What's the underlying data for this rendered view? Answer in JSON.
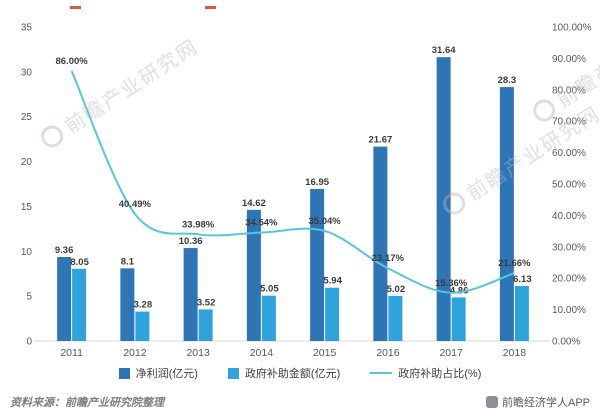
{
  "chart_data": {
    "type": "bar",
    "categories": [
      "2011",
      "2012",
      "2013",
      "2014",
      "2015",
      "2016",
      "2017",
      "2018"
    ],
    "series": [
      {
        "name": "净利润(亿元)",
        "type": "bar",
        "color": "#2E75B6",
        "values": [
          9.36,
          8.1,
          10.36,
          14.62,
          16.95,
          21.67,
          31.64,
          28.3
        ],
        "labels": [
          "9.36",
          "8.1",
          "10.36",
          "14.62",
          "16.95",
          "21.67",
          "31.64",
          "28.3"
        ]
      },
      {
        "name": "政府补助金额(亿元)",
        "type": "bar",
        "color": "#2FA3DC",
        "values": [
          8.05,
          3.28,
          3.52,
          5.05,
          5.94,
          5.02,
          4.86,
          6.13
        ],
        "labels": [
          "8.05",
          "3.28",
          "3.52",
          "5.05",
          "5.94",
          "5.02",
          "4.86",
          "6.13"
        ]
      },
      {
        "name": "政府补助占比(%)",
        "type": "line",
        "color": "#58C5DC",
        "values": [
          86.0,
          40.49,
          33.98,
          34.54,
          35.04,
          23.17,
          15.36,
          21.66
        ],
        "labels": [
          "86.00%",
          "40.49%",
          "33.98%",
          "34.54%",
          "35.04%",
          "23.17%",
          "15.36%",
          "21.66%"
        ]
      }
    ],
    "left_axis": {
      "min": 0,
      "max": 35,
      "step": 5
    },
    "right_axis": {
      "min": 0,
      "max": 100,
      "step": 10,
      "suffix": "%"
    },
    "grid": false,
    "legend_position": "bottom"
  },
  "footer": {
    "source": "资料来源：前瞻产业研究院整理",
    "credit": "前瞻经济学人APP"
  },
  "watermark": {
    "text": "前瞻产业研究网"
  }
}
